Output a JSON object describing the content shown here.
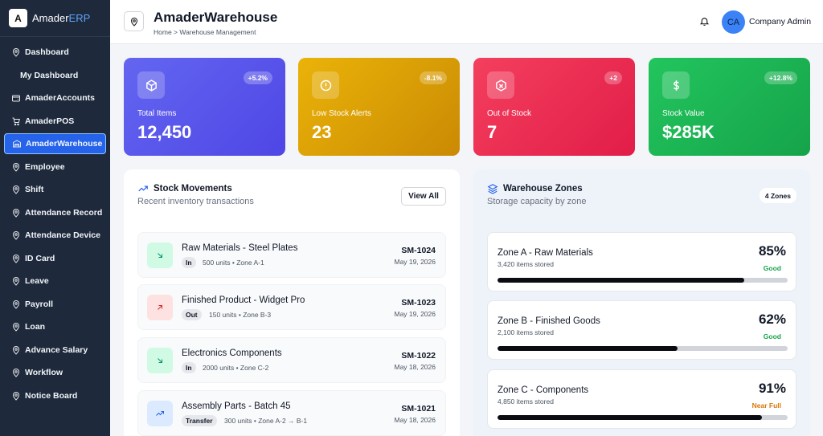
{
  "brand": {
    "logo": "A",
    "name_prefix": "Amader",
    "name_accent": "ERP"
  },
  "sidebar": {
    "items": [
      {
        "label": "Dashboard",
        "icon": "pin-icon"
      },
      {
        "label": "My Dashboard",
        "icon": ""
      },
      {
        "label": "AmaderAccounts",
        "icon": "wallet-icon"
      },
      {
        "label": "AmaderPOS",
        "icon": "cart-icon"
      },
      {
        "label": "AmaderWarehouse",
        "icon": "warehouse-icon",
        "active": true
      },
      {
        "label": "Employee",
        "icon": "pin-icon"
      },
      {
        "label": "Shift",
        "icon": "pin-icon"
      },
      {
        "label": "Attendance Record",
        "icon": "pin-icon"
      },
      {
        "label": "Attendance Device",
        "icon": "pin-icon"
      },
      {
        "label": "ID Card",
        "icon": "pin-icon"
      },
      {
        "label": "Leave",
        "icon": "pin-icon"
      },
      {
        "label": "Payroll",
        "icon": "pin-icon"
      },
      {
        "label": "Loan",
        "icon": "pin-icon"
      },
      {
        "label": "Advance Salary",
        "icon": "pin-icon"
      },
      {
        "label": "Workflow",
        "icon": "pin-icon"
      },
      {
        "label": "Notice Board",
        "icon": "pin-icon"
      }
    ]
  },
  "header": {
    "title": "AmaderWarehouse",
    "breadcrumb": "Home > Warehouse Management",
    "avatar_initials": "CA",
    "user_name": "Company Admin"
  },
  "stats": [
    {
      "label": "Total Items",
      "value": "12,450",
      "delta": "+5.2%",
      "icon": "box-icon"
    },
    {
      "label": "Low Stock Alerts",
      "value": "23",
      "delta": "-8.1%",
      "icon": "alert-icon"
    },
    {
      "label": "Out of Stock",
      "value": "7",
      "delta": "+2",
      "icon": "package-x-icon"
    },
    {
      "label": "Stock Value",
      "value": "$285K",
      "delta": "+12.8%",
      "icon": "dollar-icon"
    }
  ],
  "movements": {
    "title": "Stock Movements",
    "subtitle": "Recent inventory transactions",
    "view_all": "View All",
    "items": [
      {
        "name": "Raw Materials - Steel Plates",
        "type": "In",
        "meta": "500 units • Zone A-1",
        "ref": "SM-1024",
        "date": "May 19, 2026"
      },
      {
        "name": "Finished Product - Widget Pro",
        "type": "Out",
        "meta": "150 units • Zone B-3",
        "ref": "SM-1023",
        "date": "May 19, 2026"
      },
      {
        "name": "Electronics Components",
        "type": "In",
        "meta": "2000 units • Zone C-2",
        "ref": "SM-1022",
        "date": "May 18, 2026"
      },
      {
        "name": "Assembly Parts - Batch 45",
        "type": "Transfer",
        "meta": "300 units • Zone A-2 → B-1",
        "ref": "SM-1021",
        "date": "May 18, 2026"
      }
    ]
  },
  "zones": {
    "title": "Warehouse Zones",
    "subtitle": "Storage capacity by zone",
    "badge": "4 Zones",
    "items": [
      {
        "name": "Zone A - Raw Materials",
        "count": "3,420 items stored",
        "pct": "85%",
        "fill": 0.85,
        "status": "Good",
        "status_color": "#16a34a"
      },
      {
        "name": "Zone B - Finished Goods",
        "count": "2,100 items stored",
        "pct": "62%",
        "fill": 0.62,
        "status": "Good",
        "status_color": "#16a34a"
      },
      {
        "name": "Zone C - Components",
        "count": "4,850 items stored",
        "pct": "91%",
        "fill": 0.91,
        "status": "Near Full",
        "status_color": "#d97706"
      }
    ]
  }
}
